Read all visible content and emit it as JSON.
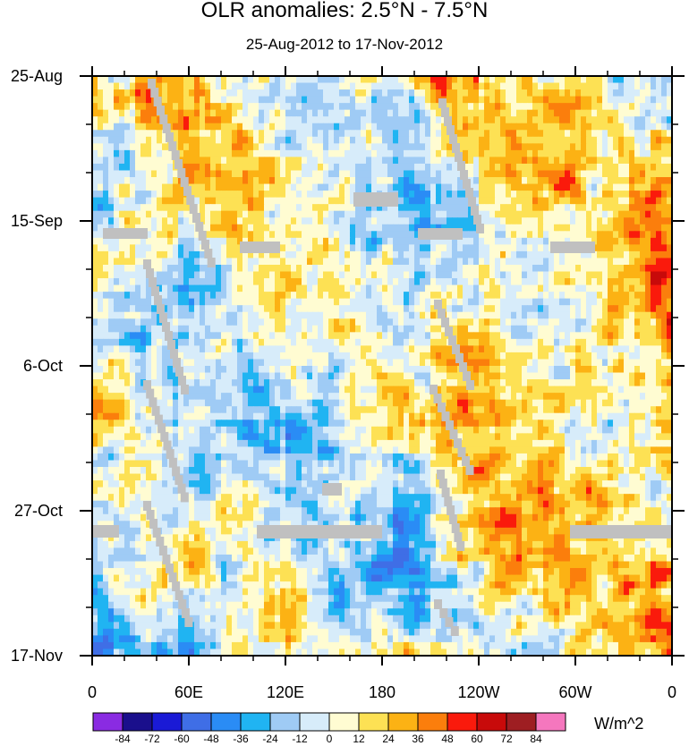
{
  "chart_data": {
    "type": "heatmap",
    "title": "OLR anomalies: 2.5°N - 7.5°N",
    "subtitle": "25-Aug-2012 to 17-Nov-2012",
    "x_axis": {
      "range": [
        "0",
        "0"
      ],
      "ticks": [
        "0",
        "60E",
        "120E",
        "180",
        "120W",
        "60W",
        "0"
      ]
    },
    "y_axis": {
      "range": [
        "25-Aug",
        "17-Nov"
      ],
      "ticks": [
        "25-Aug",
        "15-Sep",
        "6-Oct",
        "27-Oct",
        "17-Nov"
      ],
      "direction": "time increases downward"
    },
    "colorbar": {
      "levels": [
        -84,
        -72,
        -60,
        -48,
        -36,
        -24,
        -12,
        0,
        12,
        24,
        36,
        48,
        60,
        72,
        84
      ],
      "labels": [
        "-84",
        "-72",
        "-60",
        "-48",
        "-36",
        "-24",
        "-12",
        "0",
        "12",
        "24",
        "36",
        "48",
        "60",
        "72",
        "84"
      ],
      "colors": [
        "#8a2be2",
        "#1a0f8c",
        "#1a1ad6",
        "#3f6ee6",
        "#2a8cf5",
        "#20b4f2",
        "#9fcbf5",
        "#d7ecfa",
        "#fffcd2",
        "#fde154",
        "#fcb214",
        "#fb7e0c",
        "#fa1a0c",
        "#c80a0a",
        "#9e1e22",
        "#f577be"
      ],
      "units": "W/m^2"
    },
    "missing_color": "#c0c0c0",
    "grid": false,
    "legend": "bottom colorbar"
  }
}
